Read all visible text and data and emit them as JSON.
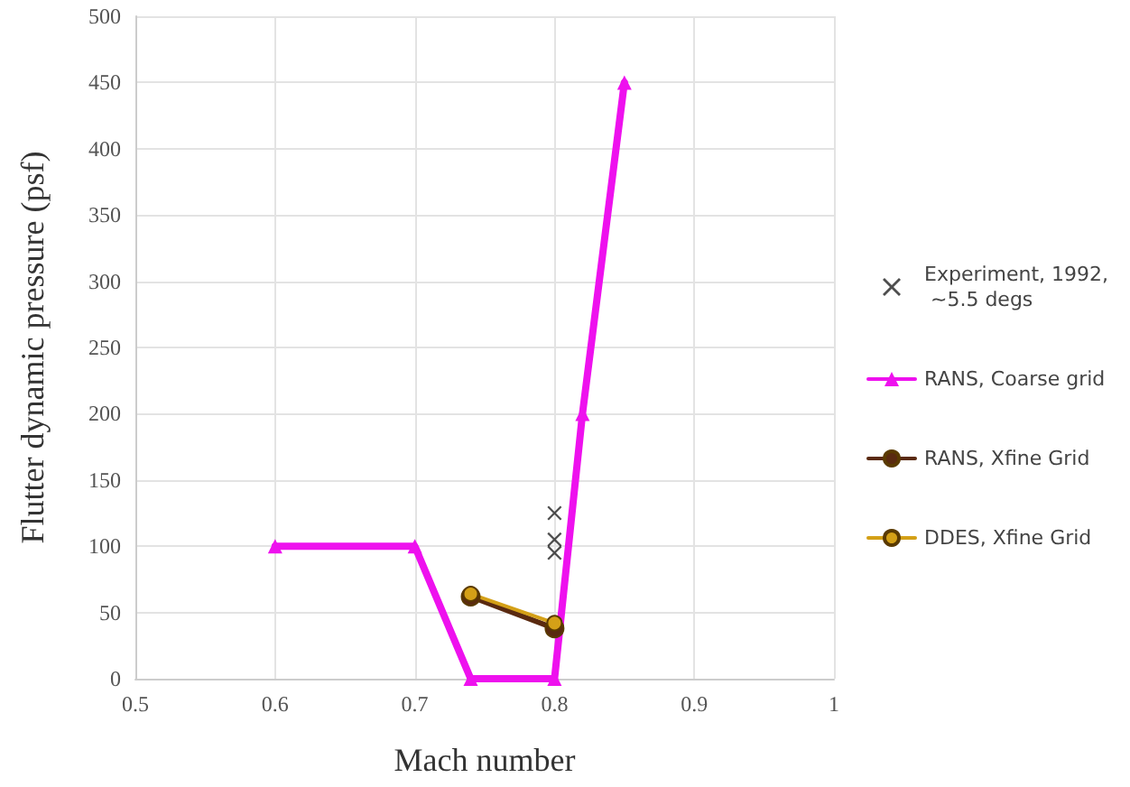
{
  "chart_data": {
    "type": "line",
    "xlabel": "Mach number",
    "ylabel": "Flutter dynamic pressure (psf)",
    "xlim": [
      0.5,
      1
    ],
    "xticks": [
      0.5,
      0.6,
      0.7,
      0.8,
      0.9,
      1
    ],
    "ylim": [
      0,
      500
    ],
    "yticks": [
      0,
      50,
      100,
      150,
      200,
      250,
      300,
      350,
      400,
      450,
      500
    ],
    "grid": true,
    "legend": "right",
    "series": [
      {
        "name": "Experiment, 1992, ~5.5 degs",
        "type": "scatter",
        "marker": "cross",
        "color": "#222222",
        "x": [
          0.8,
          0.8,
          0.8
        ],
        "values": [
          125,
          105,
          95
        ]
      },
      {
        "name": "RANS, Coarse grid",
        "marker": "triangle",
        "color": "#ee11ee",
        "x": [
          0.6,
          0.7,
          0.74,
          0.8,
          0.82,
          0.85
        ],
        "values": [
          100,
          100,
          0,
          0,
          200,
          450
        ]
      },
      {
        "name": "RANS, Xfine Grid",
        "marker": "circle",
        "color": "#5a2a10",
        "x": [
          0.74,
          0.8
        ],
        "values": [
          62,
          38
        ]
      },
      {
        "name": "DDES, Xfine Grid",
        "marker": "circle",
        "color": "#d4a017",
        "x": [
          0.74,
          0.8
        ],
        "values": [
          64,
          42
        ]
      }
    ]
  }
}
